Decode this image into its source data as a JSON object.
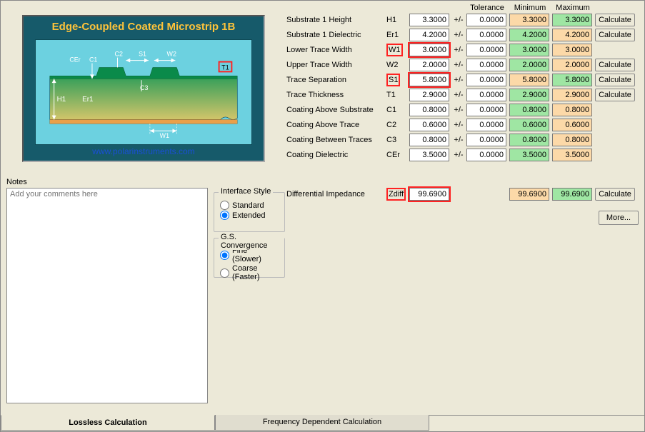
{
  "diagram": {
    "title": "Edge-Coupled Coated Microstrip 1B",
    "url": "www.polarinstruments.com",
    "colors": {
      "frame": "#165a6a",
      "sky": "#6cd1e0",
      "title_text": "#fec33a",
      "url_text": "#1a4fd6",
      "substrate_top": "#6fc06f",
      "substrate_bottom": "#d2c56a",
      "trace": "#d58a2e",
      "coating": "#0a8a4a",
      "arrow": "#ffffff",
      "label": "#ffffff",
      "t1_box": "#f22222"
    },
    "labels": [
      "CEr",
      "C1",
      "C2",
      "S1",
      "W2",
      "T1",
      "H1",
      "Er1",
      "C3",
      "W1"
    ]
  },
  "notes": {
    "label": "Notes",
    "placeholder": "Add your comments here"
  },
  "interface_style": {
    "title": "Interface Style",
    "standard": "Standard",
    "extended": "Extended",
    "selected": "extended"
  },
  "gs": {
    "title": "G.S. Convergence",
    "fine": "Fine (Slower)",
    "coarse": "Coarse (Faster)",
    "selected": "fine"
  },
  "headers": {
    "tolerance": "Tolerance",
    "minimum": "Minimum",
    "maximum": "Maximum"
  },
  "colors": {
    "orange": "#fcd9a8",
    "green": "#9fe6a3",
    "white": "#ffffff"
  },
  "params": [
    {
      "label": "Substrate 1 Height",
      "sym": "H1",
      "val": "3.3000",
      "tol": "0.0000",
      "min": "3.3000",
      "max": "3.3000",
      "minC": "orange",
      "maxC": "green",
      "calc": true
    },
    {
      "label": "Substrate 1 Dielectric",
      "sym": "Er1",
      "val": "4.2000",
      "tol": "0.0000",
      "min": "4.2000",
      "max": "4.2000",
      "minC": "green",
      "maxC": "orange",
      "calc": true
    },
    {
      "label": "Lower Trace Width",
      "sym": "W1",
      "val": "3.0000",
      "tol": "0.0000",
      "min": "3.0000",
      "max": "3.0000",
      "minC": "green",
      "maxC": "orange",
      "calc": false,
      "boxed": true
    },
    {
      "label": "Upper Trace Width",
      "sym": "W2",
      "val": "2.0000",
      "tol": "0.0000",
      "min": "2.0000",
      "max": "2.0000",
      "minC": "green",
      "maxC": "orange",
      "calc": true
    },
    {
      "label": "Trace Separation",
      "sym": "S1",
      "val": "5.8000",
      "tol": "0.0000",
      "min": "5.8000",
      "max": "5.8000",
      "minC": "orange",
      "maxC": "green",
      "calc": true,
      "boxed": true
    },
    {
      "label": "Trace Thickness",
      "sym": "T1",
      "val": "2.9000",
      "tol": "0.0000",
      "min": "2.9000",
      "max": "2.9000",
      "minC": "green",
      "maxC": "orange",
      "calc": true
    },
    {
      "label": "Coating Above Substrate",
      "sym": "C1",
      "val": "0.8000",
      "tol": "0.0000",
      "min": "0.8000",
      "max": "0.8000",
      "minC": "green",
      "maxC": "orange",
      "calc": false
    },
    {
      "label": "Coating Above Trace",
      "sym": "C2",
      "val": "0.6000",
      "tol": "0.0000",
      "min": "0.6000",
      "max": "0.6000",
      "minC": "green",
      "maxC": "orange",
      "calc": false
    },
    {
      "label": "Coating Between Traces",
      "sym": "C3",
      "val": "0.8000",
      "tol": "0.0000",
      "min": "0.8000",
      "max": "0.8000",
      "minC": "green",
      "maxC": "orange",
      "calc": false
    },
    {
      "label": "Coating Dielectric",
      "sym": "CEr",
      "val": "3.5000",
      "tol": "0.0000",
      "min": "3.5000",
      "max": "3.5000",
      "minC": "green",
      "maxC": "orange",
      "calc": false
    }
  ],
  "zdiff": {
    "label": "Differential Impedance",
    "sym": "Zdiff",
    "val": "99.6900",
    "min": "99.6900",
    "max": "99.6900",
    "minC": "orange",
    "maxC": "green",
    "calc_label": "Calculate"
  },
  "more_label": "More...",
  "calc_label": "Calculate",
  "tabs": {
    "lossless": "Lossless Calculation",
    "freq": "Frequency Dependent Calculation"
  }
}
